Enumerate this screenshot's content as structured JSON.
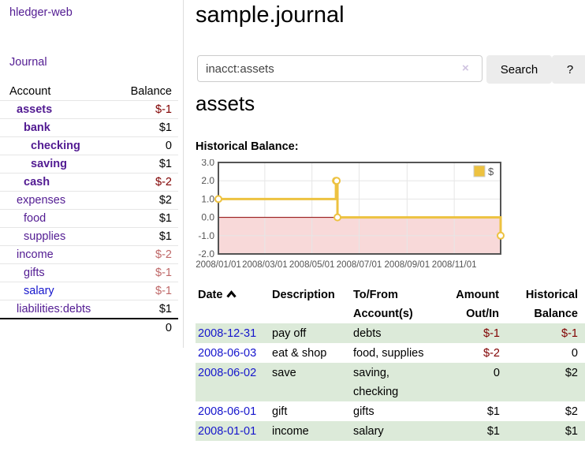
{
  "app": {
    "brand": "hledger-web"
  },
  "sidebar": {
    "journal_label": "Journal",
    "accounts_header": {
      "account": "Account",
      "balance": "Balance"
    },
    "accounts": [
      {
        "name": "assets",
        "level": 0,
        "balance": "$-1",
        "bold": true,
        "negative": "strong"
      },
      {
        "name": "bank",
        "level": 1,
        "balance": "$1",
        "bold": true,
        "negative": "none"
      },
      {
        "name": "checking",
        "level": 2,
        "balance": "0",
        "bold": true,
        "negative": "none"
      },
      {
        "name": "saving",
        "level": 2,
        "balance": "$1",
        "bold": true,
        "negative": "none"
      },
      {
        "name": "cash",
        "level": 1,
        "balance": "$-2",
        "bold": true,
        "negative": "strong"
      },
      {
        "name": "expenses",
        "level": 0,
        "balance": "$2",
        "bold": false,
        "negative": "none"
      },
      {
        "name": "food",
        "level": 1,
        "balance": "$1",
        "bold": false,
        "negative": "none"
      },
      {
        "name": "supplies",
        "level": 1,
        "balance": "$1",
        "bold": false,
        "negative": "none"
      },
      {
        "name": "income",
        "level": 0,
        "balance": "$-2",
        "bold": false,
        "negative": "soft"
      },
      {
        "name": "gifts",
        "level": 1,
        "balance": "$-1",
        "bold": false,
        "negative": "soft"
      },
      {
        "name": "salary",
        "level": 1,
        "balance": "$-1",
        "bold": false,
        "negative": "soft",
        "link_color": "blue"
      },
      {
        "name": "liabilities:debts",
        "level": 0,
        "balance": "$1",
        "bold": false,
        "negative": "none"
      }
    ],
    "total": "0"
  },
  "header": {
    "title": "sample.journal"
  },
  "search": {
    "value": "inacct:assets",
    "clear_icon": "×",
    "button_label": "Search",
    "help_label": "?"
  },
  "account_page": {
    "heading": "assets",
    "chart_title": "Historical Balance:"
  },
  "chart_data": {
    "type": "line",
    "step": true,
    "title": "Historical Balance",
    "series": [
      {
        "name": "$",
        "color": "#edc240",
        "points": [
          [
            "2008-01-01",
            1
          ],
          [
            "2008-06-01",
            2
          ],
          [
            "2008-06-02",
            2
          ],
          [
            "2008-06-03",
            0
          ],
          [
            "2008-12-31",
            -1
          ]
        ]
      }
    ],
    "xlim": [
      "2008-01-01",
      "2008-12-31"
    ],
    "ylim": [
      -2,
      3
    ],
    "y_ticks": [
      {
        "v": 3,
        "label": "3.0"
      },
      {
        "v": 2,
        "label": "2.0"
      },
      {
        "v": 1,
        "label": "1.0"
      },
      {
        "v": 0,
        "label": "0.0"
      },
      {
        "v": -1,
        "label": "-1.0"
      },
      {
        "v": -2,
        "label": "-2.0"
      }
    ],
    "x_ticks": [
      {
        "date": "2008-01-01",
        "label": "2008/01/01"
      },
      {
        "date": "2008-03-01",
        "label": "2008/03/01"
      },
      {
        "date": "2008-05-01",
        "label": "2008/05/01"
      },
      {
        "date": "2008-07-01",
        "label": "2008/07/01"
      },
      {
        "date": "2008-09-01",
        "label": "2008/09/01"
      },
      {
        "date": "2008-11-01",
        "label": "2008/11/01"
      }
    ],
    "legend": {
      "label": "$",
      "position": "top-right"
    },
    "grid": true,
    "colors": {
      "border": "#545454",
      "gridline": "#e6e6e6",
      "zero_line": "#8c0000",
      "negative_region": "#f8d9d9",
      "axis_text": "#545454"
    }
  },
  "register": {
    "columns": [
      {
        "label": "Date",
        "sort": "asc"
      },
      {
        "label": "Description"
      },
      {
        "label": "To/From Account(s)"
      },
      {
        "label": "Amount Out/In"
      },
      {
        "label": "Historical Balance"
      }
    ],
    "rows": [
      {
        "date": "2008-12-31",
        "description": "pay off",
        "accounts": "debts",
        "amount": "$-1",
        "amount_negative": true,
        "balance": "$-1",
        "balance_negative": true
      },
      {
        "date": "2008-06-03",
        "description": "eat & shop",
        "accounts": "food, supplies",
        "amount": "$-2",
        "amount_negative": true,
        "balance": "0",
        "balance_negative": false
      },
      {
        "date": "2008-06-02",
        "description": "save",
        "accounts": "saving, checking",
        "amount": "0",
        "amount_negative": false,
        "balance": "$2",
        "balance_negative": false
      },
      {
        "date": "2008-06-01",
        "description": "gift",
        "accounts": "gifts",
        "amount": "$1",
        "amount_negative": false,
        "balance": "$2",
        "balance_negative": false
      },
      {
        "date": "2008-01-01",
        "description": "income",
        "accounts": "salary",
        "amount": "$1",
        "amount_negative": false,
        "balance": "$1",
        "balance_negative": false
      }
    ]
  }
}
